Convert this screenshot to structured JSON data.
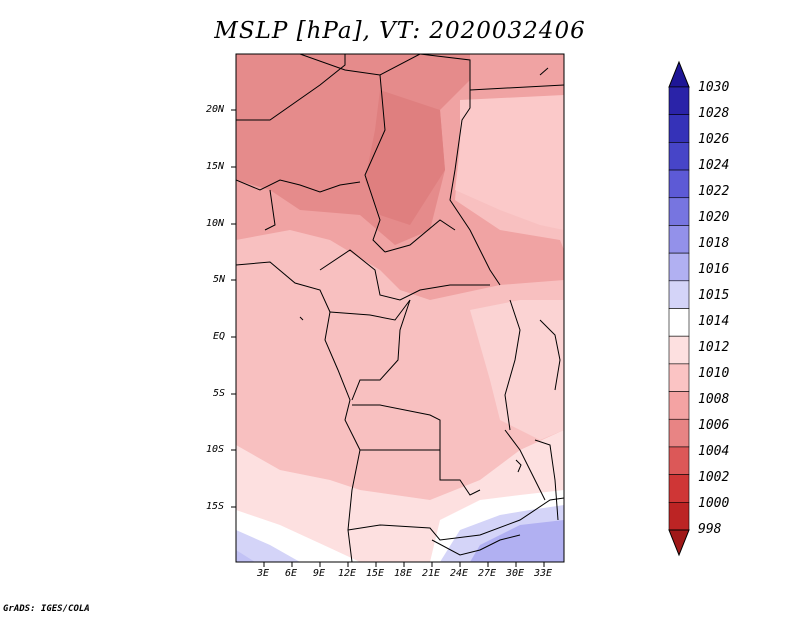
{
  "title": "MSLP [hPa], VT: 2020032406",
  "lat_labels": [
    "20N",
    "15N",
    "10N",
    "5N",
    "EQ",
    "5S",
    "10S",
    "15S"
  ],
  "lon_labels": [
    "3E",
    "6E",
    "9E",
    "12E",
    "15E",
    "18E",
    "21E",
    "24E",
    "27E",
    "30E",
    "33E"
  ],
  "colorbar": {
    "labels": [
      "1030",
      "1028",
      "1026",
      "1024",
      "1022",
      "1020",
      "1018",
      "1016",
      "1015",
      "1014",
      "1012",
      "1010",
      "1008",
      "1006",
      "1004",
      "1002",
      "1000",
      "998"
    ],
    "colors": [
      "#1e1696",
      "#2a23a8",
      "#3532b8",
      "#4745c8",
      "#5d5ad6",
      "#7775e0",
      "#9391ea",
      "#b1b0f2",
      "#d4d4f8",
      "#ffffff",
      "#fde0e0",
      "#fbc4c4",
      "#f4a3a3",
      "#e88484",
      "#dc5858",
      "#cf3636",
      "#bc2424",
      "#a01818"
    ]
  },
  "credit": "GrADS: IGES/COLA"
}
